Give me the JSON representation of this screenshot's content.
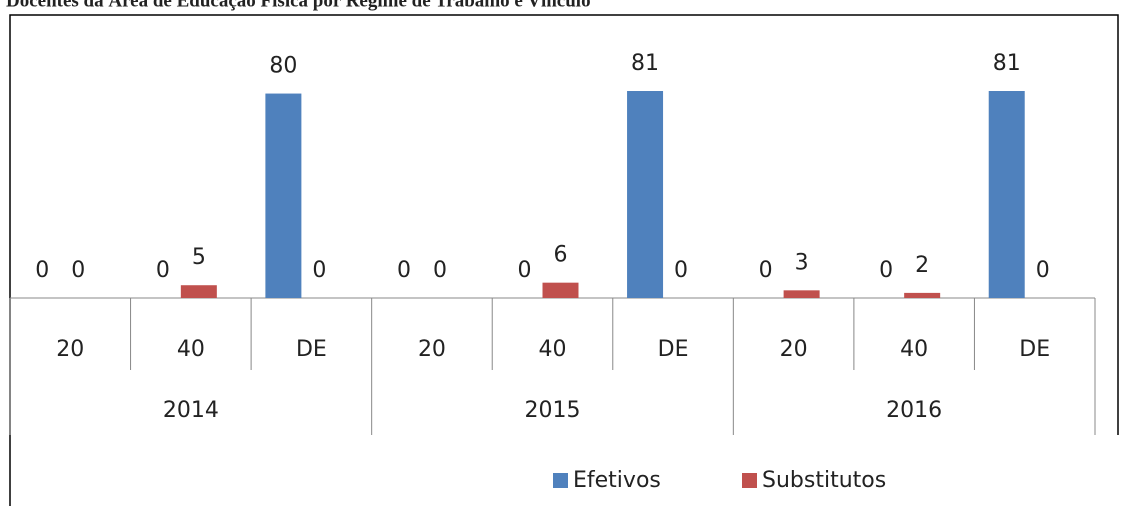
{
  "chart_data": {
    "type": "bar",
    "title": "Docentes da Área de Educação Física por Regime de Trabalho e Vínculo",
    "categories": [
      "20",
      "40",
      "DE",
      "20",
      "40",
      "DE",
      "20",
      "40",
      "DE"
    ],
    "groups": [
      "2014",
      "2015",
      "2016"
    ],
    "series": [
      {
        "name": "Efetivos",
        "color": "#4f81bd",
        "values": [
          0,
          0,
          80,
          0,
          0,
          81,
          0,
          0,
          81
        ]
      },
      {
        "name": "Substitutos",
        "color": "#c0504d",
        "values": [
          0,
          5,
          0,
          0,
          6,
          0,
          3,
          2,
          0
        ]
      }
    ],
    "ylim": [
      0,
      90
    ],
    "legend": "bottom"
  }
}
